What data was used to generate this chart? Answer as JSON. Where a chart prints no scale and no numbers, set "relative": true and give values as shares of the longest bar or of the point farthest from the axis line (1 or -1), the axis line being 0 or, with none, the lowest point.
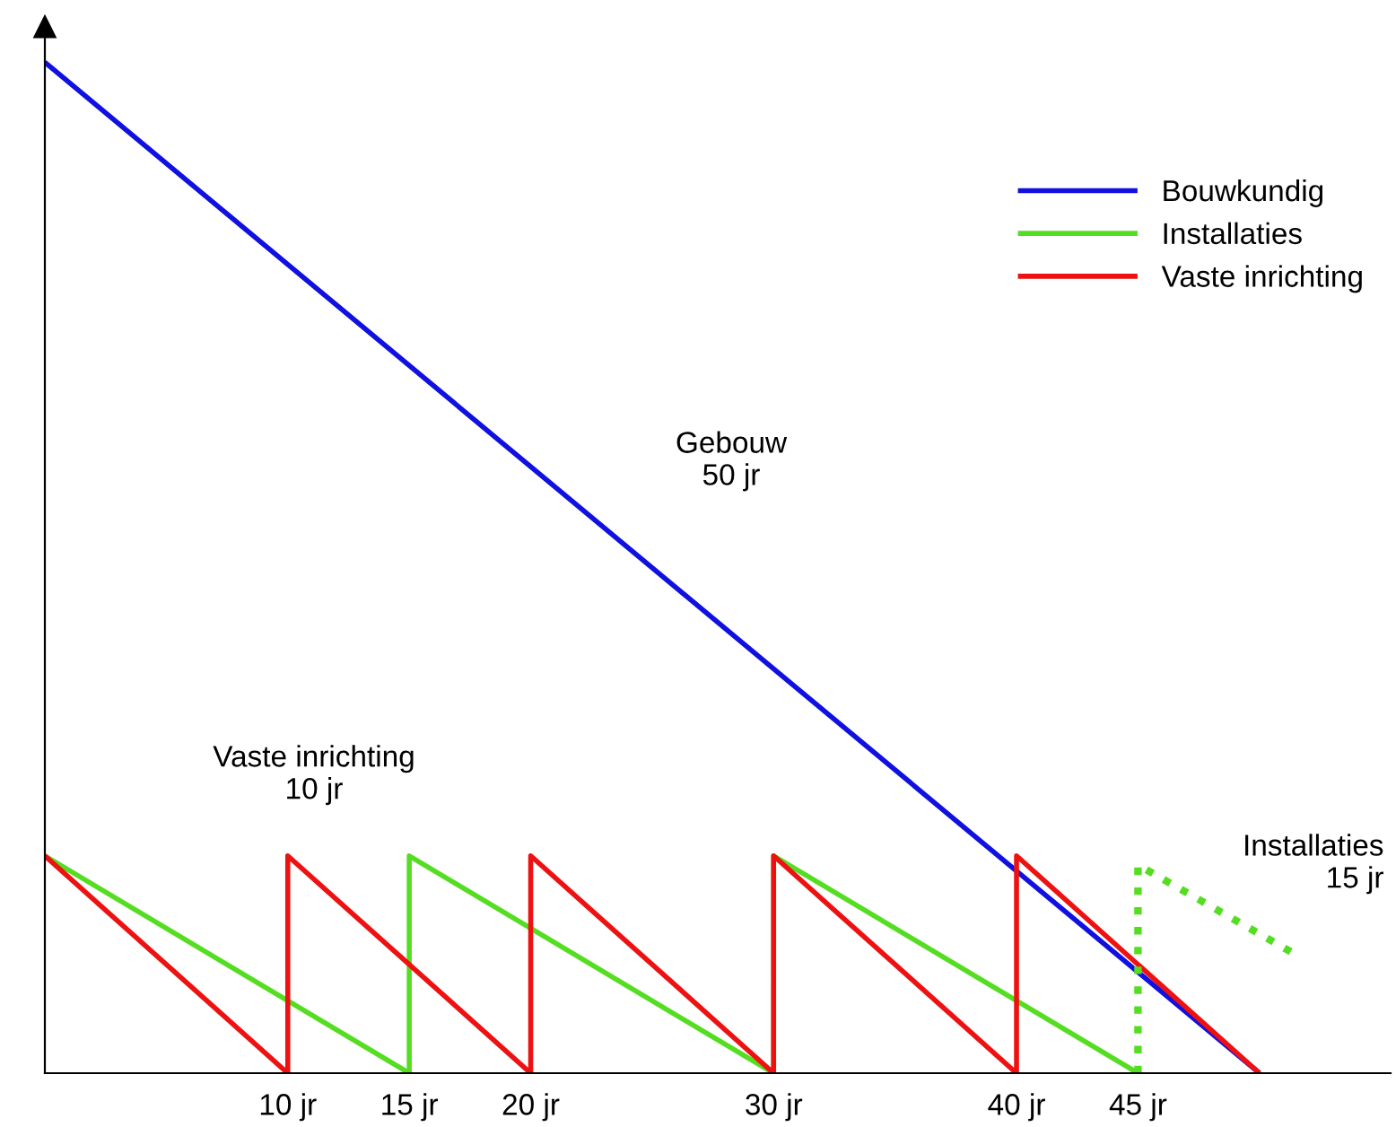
{
  "chart_data": {
    "type": "line",
    "relative": true,
    "xlim": [
      0,
      55.4
    ],
    "xticks": [
      {
        "value": 10,
        "label": "10 jr"
      },
      {
        "value": 15,
        "label": "15 jr"
      },
      {
        "value": 20,
        "label": "20 jr"
      },
      {
        "value": 30,
        "label": "30 jr"
      },
      {
        "value": 40,
        "label": "40 jr"
      },
      {
        "value": 45,
        "label": "45 jr"
      }
    ],
    "series": [
      {
        "name": "Bouwkundig",
        "color": "#1010e0",
        "x": [
          0,
          50
        ],
        "values": [
          1,
          0
        ]
      },
      {
        "name": "Installaties",
        "color": "#55dd22",
        "x": [
          0,
          15,
          15,
          30,
          30,
          45
        ],
        "values": [
          0.215,
          0,
          0.215,
          0,
          0.215,
          0
        ]
      },
      {
        "name": "Vaste inrichting",
        "color": "#ee1111",
        "x": [
          0,
          10,
          10,
          20,
          20,
          30,
          30,
          40,
          40,
          50
        ],
        "values": [
          0.215,
          0,
          0.215,
          0,
          0.215,
          0,
          0.215,
          0,
          0.215,
          0
        ]
      },
      {
        "color": "#55dd22",
        "line_style": "dotted",
        "x": [
          45,
          45,
          51.3
        ],
        "values": [
          0,
          0.206,
          0.12
        ]
      }
    ],
    "annotations": [
      "Gebouw\n50 jr",
      "Vaste inrichting\n10 jr",
      "Installaties\n15 jr"
    ],
    "legend": "top right",
    "grid": false,
    "marker": "none",
    "line_style": "solid"
  }
}
